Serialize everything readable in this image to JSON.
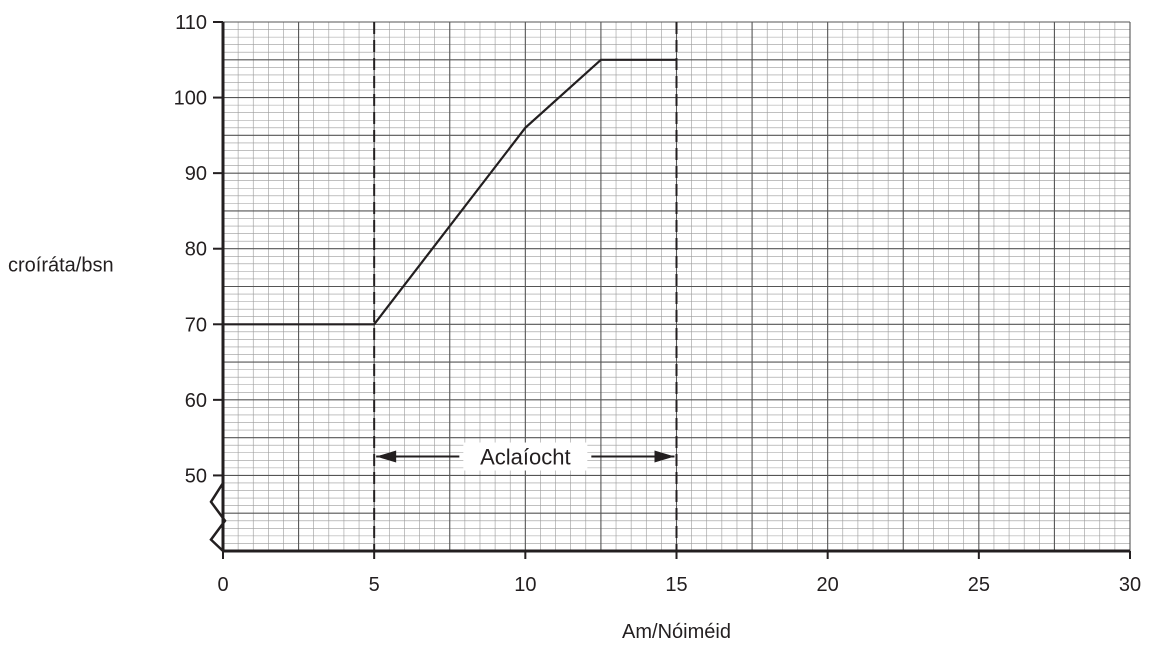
{
  "chart_data": {
    "type": "line",
    "xlabel": "Am/Nóiméid",
    "ylabel": "croíráta/bsn",
    "xlim": [
      0,
      30
    ],
    "ylim": [
      40,
      110
    ],
    "x_ticks": [
      "0",
      "5",
      "10",
      "15",
      "20",
      "25",
      "30"
    ],
    "y_ticks": [
      "50",
      "60",
      "70",
      "80",
      "90",
      "100",
      "110"
    ],
    "grid": true,
    "y_axis_break": true,
    "series": [
      {
        "x": [
          0,
          5,
          10,
          12.5,
          15
        ],
        "y": [
          70,
          70,
          96,
          105,
          105
        ]
      }
    ],
    "annotations": [
      {
        "text": "Aclaíocht",
        "x_start": 5,
        "x_end": 15,
        "y": 52.5,
        "style": "double-arrow"
      }
    ],
    "vertical_markers": [
      5,
      15
    ]
  }
}
